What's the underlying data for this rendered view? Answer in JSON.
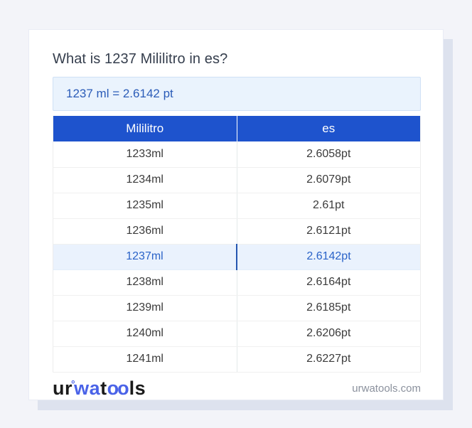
{
  "page": {
    "title": "What is 1237 Mililitro in es?",
    "result_text": "1237 ml = 2.6142 pt"
  },
  "table": {
    "headers": [
      "Mililitro",
      "es"
    ],
    "rows": [
      [
        "1233ml",
        "2.6058pt"
      ],
      [
        "1234ml",
        "2.6079pt"
      ],
      [
        "1235ml",
        "2.61pt"
      ],
      [
        "1236ml",
        "2.6121pt"
      ],
      [
        "1237ml",
        "2.6142pt"
      ],
      [
        "1238ml",
        "2.6164pt"
      ],
      [
        "1239ml",
        "2.6185pt"
      ],
      [
        "1240ml",
        "2.6206pt"
      ],
      [
        "1241ml",
        "2.6227pt"
      ]
    ],
    "highlight_index": 4
  },
  "footer": {
    "logo_parts": {
      "part1": "ur",
      "ring": "°",
      "part2": "wa",
      "part3": "t",
      "part4": "oo",
      "part5": "ls"
    },
    "site": "urwatools.com"
  },
  "colors": {
    "accent_blue": "#1e53cd",
    "page_background": "#f3f4f9",
    "card_shadow": "#dde2ee",
    "result_background": "#eaf3fd",
    "result_border": "#cfe0f5",
    "result_text": "#2b5cb8",
    "highlight_row_background": "#eaf2fd",
    "highlight_row_text": "#2a63c8",
    "highlight_divider": "#2456b0",
    "logo_blue": "#4a63e8"
  }
}
